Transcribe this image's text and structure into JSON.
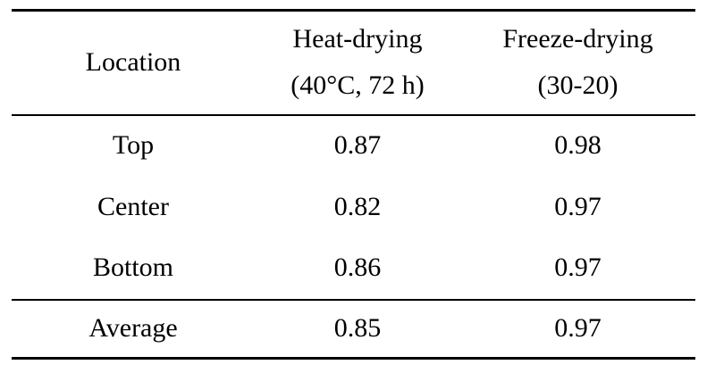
{
  "colors": {
    "background": "#ffffff",
    "text": "#000000",
    "rule": "#000000"
  },
  "table": {
    "header": {
      "location": "Location",
      "heat_drying": {
        "line1": "Heat-drying",
        "line2": "(40°C, 72 h)"
      },
      "freeze_drying": {
        "line1": "Freeze-drying",
        "line2": "(30-20)"
      }
    },
    "rows": [
      {
        "cells": [
          "Top",
          "0.87",
          "0.98"
        ]
      },
      {
        "cells": [
          "Center",
          "0.82",
          "0.97"
        ]
      },
      {
        "cells": [
          "Bottom",
          "0.86",
          "0.97"
        ]
      }
    ],
    "footer": {
      "cells": [
        "Average",
        "0.85",
        "0.97"
      ]
    }
  },
  "chart_data": {
    "type": "table",
    "columns": [
      "Location",
      "Heat-drying (40°C, 72 h)",
      "Freeze-drying (30-20)"
    ],
    "rows": [
      [
        "Top",
        0.87,
        0.98
      ],
      [
        "Center",
        0.82,
        0.97
      ],
      [
        "Bottom",
        0.86,
        0.97
      ],
      [
        "Average",
        0.85,
        0.97
      ]
    ]
  }
}
